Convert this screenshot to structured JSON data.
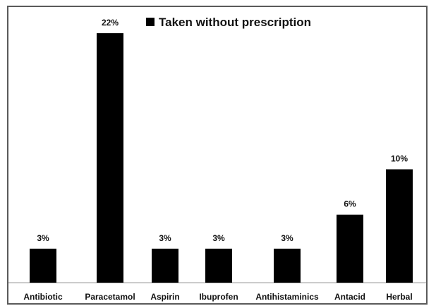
{
  "chart_data": {
    "type": "bar",
    "title": "",
    "xlabel": "",
    "ylabel": "",
    "categories": [
      "Antibiotic",
      "Paracetamol",
      "Aspirin",
      "Ibuprofen",
      "Antihistaminics",
      "Antacid",
      "Herbal"
    ],
    "series": [
      {
        "name": "Taken without prescription",
        "values": [
          3,
          22,
          3,
          3,
          3,
          6,
          10
        ],
        "value_labels": [
          "3%",
          "22%",
          "3%",
          "3%",
          "3%",
          "6%",
          "10%"
        ],
        "color": "#000000"
      }
    ],
    "ylim": [
      0,
      22
    ],
    "grid": false,
    "legend_position": "top-center"
  }
}
